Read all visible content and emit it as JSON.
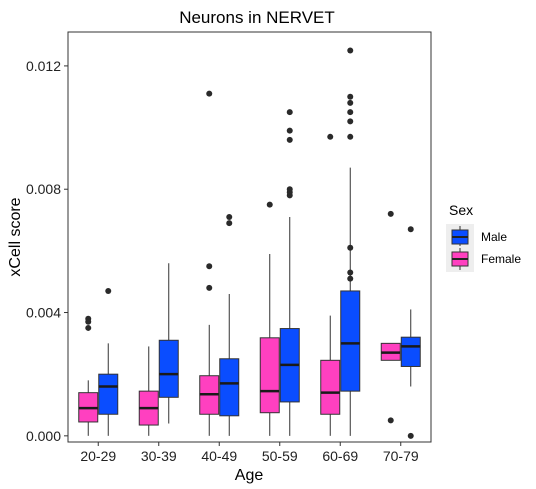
{
  "chart_data": {
    "type": "boxplot",
    "title": "Neurons in NERVET",
    "xlabel": "Age",
    "ylabel": "xCell score",
    "ylim": [
      -0.0002,
      0.0131
    ],
    "yticks": [
      "0.000",
      "0.004",
      "0.008",
      "0.012"
    ],
    "categories": [
      "20-29",
      "30-39",
      "40-49",
      "50-59",
      "60-69",
      "70-79"
    ],
    "grid": false,
    "legend": {
      "title": "Sex",
      "placement": "right",
      "entries": [
        {
          "name": "Male",
          "color": "#0a4dff"
        },
        {
          "name": "Female",
          "color": "#ff40c0"
        }
      ]
    },
    "series": [
      {
        "name": "Female",
        "color": "#ff40c0",
        "boxes": [
          {
            "category": "20-29",
            "min": 0.0,
            "q1": 0.00045,
            "median": 0.0009,
            "q3": 0.0014,
            "max": 0.0018,
            "outliers": [
              0.0035,
              0.0037,
              0.0038
            ]
          },
          {
            "category": "30-39",
            "min": 0.0,
            "q1": 0.00035,
            "median": 0.0009,
            "q3": 0.00145,
            "max": 0.0029,
            "outliers": []
          },
          {
            "category": "40-49",
            "min": 0.0,
            "q1": 0.0007,
            "median": 0.00135,
            "q3": 0.00195,
            "max": 0.0036,
            "outliers": [
              0.0048,
              0.0055,
              0.0111
            ]
          },
          {
            "category": "50-59",
            "min": 0.0,
            "q1": 0.00075,
            "median": 0.00145,
            "q3": 0.00318,
            "max": 0.0059,
            "outliers": [
              0.0075
            ]
          },
          {
            "category": "60-69",
            "min": 0.0,
            "q1": 0.0007,
            "median": 0.0014,
            "q3": 0.00245,
            "max": 0.0039,
            "outliers": [
              0.0097
            ]
          },
          {
            "category": "70-79",
            "min": 0.00245,
            "q1": 0.00245,
            "median": 0.0027,
            "q3": 0.003,
            "max": 0.003,
            "outliers": [
              0.0005,
              0.0072
            ]
          }
        ]
      },
      {
        "name": "Male",
        "color": "#0a4dff",
        "boxes": [
          {
            "category": "20-29",
            "min": 0.0,
            "q1": 0.0007,
            "median": 0.0016,
            "q3": 0.002,
            "max": 0.003,
            "outliers": [
              0.0047
            ]
          },
          {
            "category": "30-39",
            "min": 0.0004,
            "q1": 0.00125,
            "median": 0.002,
            "q3": 0.0031,
            "max": 0.0056,
            "outliers": []
          },
          {
            "category": "40-49",
            "min": 0.0,
            "q1": 0.00065,
            "median": 0.0017,
            "q3": 0.0025,
            "max": 0.0046,
            "outliers": [
              0.0069,
              0.0071
            ]
          },
          {
            "category": "50-59",
            "min": 0.0,
            "q1": 0.0011,
            "median": 0.0023,
            "q3": 0.00348,
            "max": 0.0071,
            "outliers": [
              0.0078,
              0.0079,
              0.008,
              0.0096,
              0.0099,
              0.0105
            ]
          },
          {
            "category": "60-69",
            "min": 0.0,
            "q1": 0.00145,
            "median": 0.003,
            "q3": 0.0047,
            "max": 0.0087,
            "outliers": [
              0.0051,
              0.0053,
              0.0061,
              0.0097,
              0.0102,
              0.0105,
              0.0108,
              0.011,
              0.0125
            ]
          },
          {
            "category": "70-79",
            "min": 0.0016,
            "q1": 0.00225,
            "median": 0.0029,
            "q3": 0.0032,
            "max": 0.0041,
            "outliers": [
              0.0,
              0.0067
            ]
          }
        ]
      }
    ]
  }
}
